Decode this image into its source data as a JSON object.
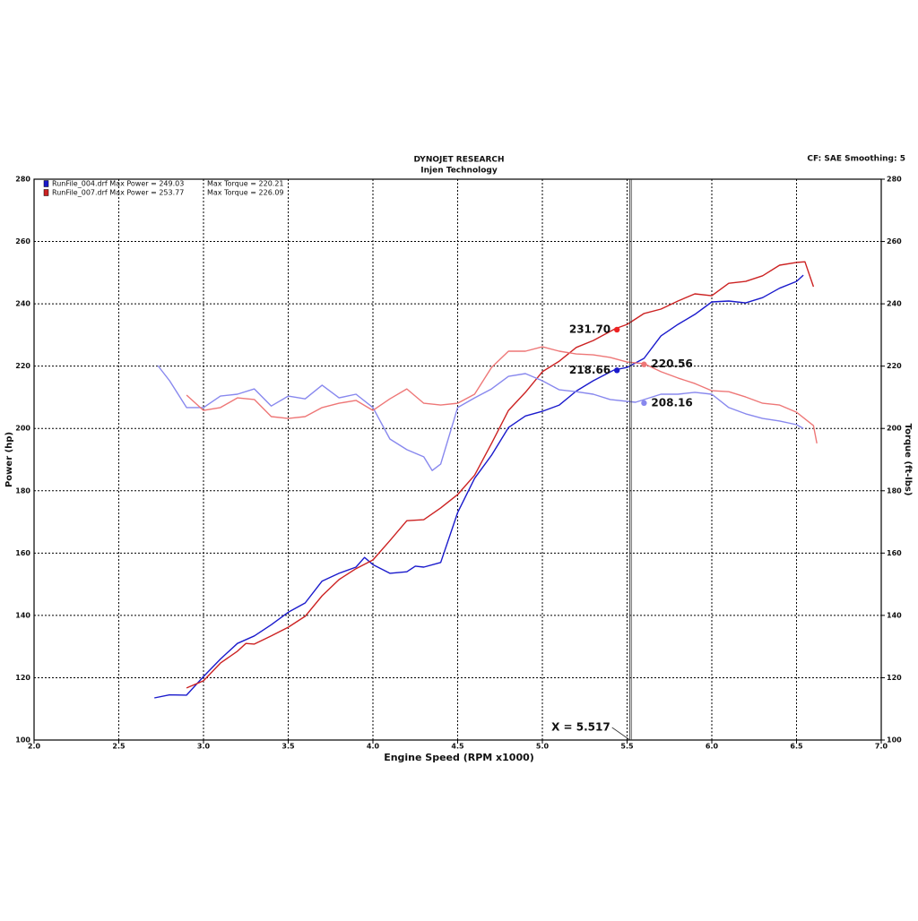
{
  "chart_data": {
    "type": "line",
    "title": "DYNOJET RESEARCH",
    "subtitle": "Injen Technology",
    "corner_note": "CF: SAE  Smoothing: 5",
    "xlabel": "Engine Speed (RPM x1000)",
    "ylabel": "Power (hp)",
    "y2label": "Torque (ft-lbs)",
    "xlim": [
      2,
      7
    ],
    "xticks": [
      {
        "value": 2,
        "label": "2.0"
      },
      2.5,
      {
        "value": 3,
        "label": "3.0"
      },
      3.5,
      {
        "value": 4,
        "label": "4.0"
      },
      4.5,
      {
        "value": 5,
        "label": "5.0"
      },
      5.5,
      {
        "value": 6,
        "label": "6.0"
      },
      6.5,
      {
        "value": 7,
        "label": "7.0"
      }
    ],
    "ylim": [
      100,
      280
    ],
    "yticks": [
      100,
      120,
      140,
      160,
      180,
      200,
      220,
      240,
      260,
      280
    ],
    "y2lim": [
      100,
      280
    ],
    "y2ticks": [
      100,
      120,
      140,
      160,
      180,
      200,
      220,
      240,
      260,
      280
    ],
    "grid": true,
    "legend": [
      {
        "power": "RunFile_004.drf Max Power = 249.03",
        "torque": "Max Torque = 220.21",
        "color": "#1a1acc"
      },
      {
        "power": "RunFile_007.drf Max Power = 253.77",
        "torque": "Max Torque = 226.09",
        "color": "#cc2222"
      }
    ],
    "series": [
      {
        "color": "#1a1acc",
        "x": [
          2.71,
          2.8,
          2.9,
          3.0,
          3.1,
          3.2,
          3.3,
          3.4,
          3.5,
          3.6,
          3.7,
          3.8,
          3.9,
          3.95,
          4.0,
          4.1,
          4.2,
          4.25,
          4.3,
          4.4,
          4.5,
          4.6,
          4.7,
          4.8,
          4.9,
          5.0,
          5.1,
          5.2,
          5.3,
          5.42,
          5.5,
          5.6,
          5.7,
          5.8,
          5.9,
          6.0,
          6.1,
          6.2,
          6.3,
          6.4,
          6.5,
          6.54
        ],
        "values": [
          113.5,
          114.5,
          114.4,
          120.4,
          126,
          131,
          133.4,
          137,
          141,
          144,
          151,
          153.5,
          155.5,
          158.6,
          156.3,
          153.5,
          154,
          155.8,
          155.5,
          157,
          173,
          184,
          191.4,
          200.3,
          204,
          205.5,
          207.5,
          212,
          215.3,
          218.7,
          219.6,
          222.5,
          229.7,
          233.4,
          236.6,
          240.6,
          240.9,
          240.3,
          242,
          245,
          247.2,
          249.2
        ]
      },
      {
        "color": "#cc2222",
        "x": [
          2.9,
          3.0,
          3.1,
          3.2,
          3.25,
          3.3,
          3.4,
          3.5,
          3.6,
          3.7,
          3.8,
          3.9,
          4.0,
          4.1,
          4.2,
          4.3,
          4.4,
          4.5,
          4.6,
          4.7,
          4.8,
          4.9,
          5.0,
          5.1,
          5.2,
          5.3,
          5.43,
          5.5,
          5.6,
          5.7,
          5.8,
          5.9,
          6.0,
          6.1,
          6.2,
          6.3,
          6.4,
          6.5,
          6.55,
          6.6
        ],
        "values": [
          116.7,
          119,
          124.7,
          128.5,
          131,
          130.8,
          133.4,
          136.2,
          139.7,
          146.3,
          151.5,
          155,
          157.8,
          164,
          170.4,
          170.7,
          174.5,
          178.8,
          185,
          195.2,
          205.8,
          211.6,
          218.2,
          221.6,
          226,
          228.2,
          232,
          233.4,
          236.9,
          238.3,
          240.9,
          243.2,
          242.6,
          246.6,
          247.2,
          249,
          252.4,
          253.3,
          253.5,
          245.5
        ]
      },
      {
        "color": "#8888ee",
        "axis": "y2",
        "x": [
          2.73,
          2.8,
          2.9,
          3.0,
          3.1,
          3.2,
          3.3,
          3.4,
          3.5,
          3.6,
          3.7,
          3.8,
          3.9,
          4.0,
          4.1,
          4.2,
          4.3,
          4.35,
          4.4,
          4.5,
          4.6,
          4.7,
          4.8,
          4.9,
          5.0,
          5.1,
          5.2,
          5.3,
          5.4,
          5.55,
          5.7,
          5.8,
          5.9,
          6.0,
          6.1,
          6.2,
          6.3,
          6.4,
          6.5,
          6.54
        ],
        "values": [
          220.2,
          215.3,
          206.7,
          206.7,
          210.4,
          211,
          212.7,
          207.2,
          210.4,
          209.5,
          213.9,
          209.8,
          211,
          206.7,
          196.6,
          193.2,
          190.9,
          186.5,
          188.6,
          206.7,
          209.8,
          212.7,
          216.7,
          217.6,
          215.3,
          212.4,
          211.8,
          211,
          209.3,
          208.4,
          211,
          211,
          211.6,
          211,
          206.7,
          204.7,
          203.2,
          202.4,
          201.2,
          200
        ]
      },
      {
        "color": "#ee7777",
        "axis": "y2",
        "x": [
          2.9,
          3.0,
          3.1,
          3.2,
          3.3,
          3.4,
          3.5,
          3.6,
          3.7,
          3.8,
          3.9,
          4.0,
          4.1,
          4.2,
          4.3,
          4.4,
          4.5,
          4.6,
          4.7,
          4.8,
          4.9,
          5.0,
          5.1,
          5.2,
          5.3,
          5.4,
          5.5,
          5.6,
          5.7,
          5.8,
          5.9,
          6.0,
          6.1,
          6.2,
          6.3,
          6.4,
          6.5,
          6.6,
          6.62
        ],
        "values": [
          210.7,
          205.8,
          206.7,
          209.8,
          209.3,
          203.8,
          203.2,
          203.8,
          206.7,
          208.1,
          209,
          205.8,
          209.5,
          212.7,
          208.1,
          207.5,
          208.1,
          211,
          219.6,
          224.8,
          224.8,
          226.2,
          224.8,
          223.9,
          223.6,
          222.8,
          221.3,
          220.8,
          218.2,
          216.2,
          214.4,
          212.1,
          211.8,
          210.1,
          208.1,
          207.5,
          205.2,
          200.9,
          195.2
        ]
      }
    ],
    "cursor": {
      "x": 5.517,
      "label": "X = 5.517"
    },
    "markers": {
      "x": [
        5.44,
        5.44,
        5.6,
        5.6
      ],
      "values": [
        231.7,
        218.66,
        220.56,
        208.16
      ],
      "value_labels": [
        "231.70",
        "218.66",
        "220.56",
        "208.16"
      ],
      "colors": [
        "#ee2222",
        "#1a1acc",
        "#ee7777",
        "#8888ee"
      ]
    }
  }
}
